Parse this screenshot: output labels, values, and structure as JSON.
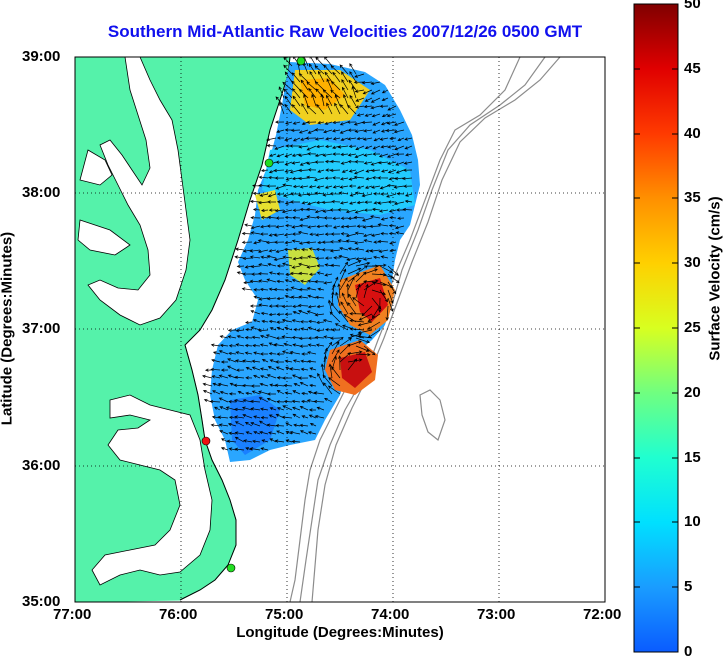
{
  "title": "Southern Mid-Atlantic Raw Velocities 2007/12/26 0500 GMT",
  "xlabel": "Longitude (Degrees:Minutes)",
  "ylabel": "Latitude (Degrees:Minutes)",
  "colorbar_label": "Surface Velocity (cm/s)",
  "xticks": [
    "77:00",
    "76:00",
    "75:00",
    "74:00",
    "73:00",
    "72:00"
  ],
  "yticks": [
    "39:00",
    "38:00",
    "37:00",
    "36:00",
    "35:00"
  ],
  "cbticks": [
    "50",
    "45",
    "40",
    "35",
    "30",
    "25",
    "20",
    "15",
    "10",
    "5",
    "0"
  ],
  "colors": {
    "land": "#55f2aa",
    "title": "#1010ee",
    "station_green": "#22dd22",
    "station_red": "#ee1111"
  },
  "colorbar": {
    "min": 0,
    "max": 50,
    "colormap": "jet"
  },
  "chart_data": {
    "type": "map",
    "xlim": [
      "77:00",
      "72:00"
    ],
    "ylim": [
      "35:00",
      "39:00"
    ],
    "grid": true
  }
}
